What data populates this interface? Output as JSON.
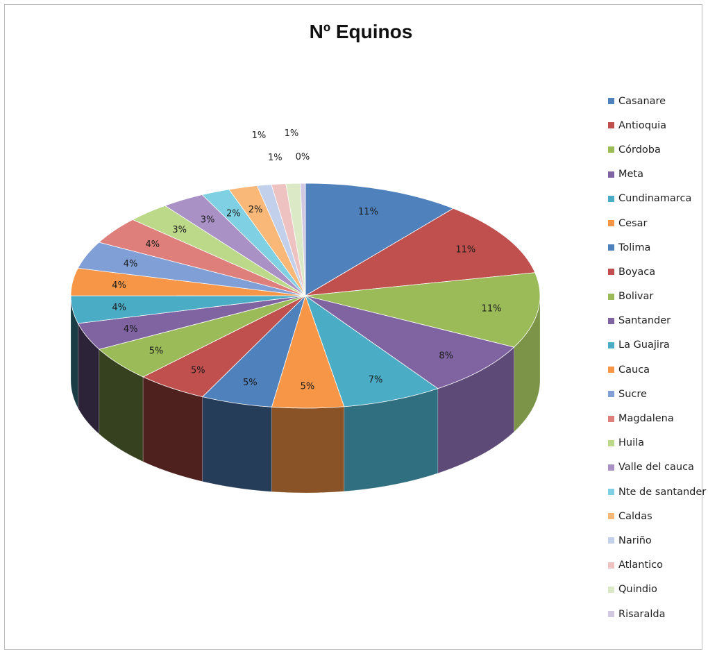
{
  "chart_data": {
    "type": "pie",
    "title": "Nº Equinos",
    "legend_position": "right",
    "categories": [
      "Casanare",
      "Antioquia",
      "Córdoba",
      "Meta",
      "Cundinamarca",
      "Cesar",
      "Tolima",
      "Boyaca",
      "Bolivar",
      "Santander",
      "La Guajira",
      "Cauca",
      "Sucre",
      "Magdalena",
      "Huila",
      "Valle del cauca",
      "Nte de santander",
      "Caldas",
      "Nariño",
      "Atlantico",
      "Quindio",
      "Risaralda"
    ],
    "values": [
      11,
      11,
      11,
      8,
      7,
      5,
      5,
      5,
      5,
      4,
      4,
      4,
      4,
      4,
      3,
      3,
      2,
      2,
      1,
      1,
      1,
      0
    ],
    "labels": [
      "11%",
      "11%",
      "11%",
      "8%",
      "7%",
      "5%",
      "5%",
      "5%",
      "5%",
      "4%",
      "4%",
      "4%",
      "4%",
      "4%",
      "3%",
      "3%",
      "2%",
      "2%",
      "1%",
      "1%",
      "1%",
      "0%"
    ],
    "colors": [
      "#4f81bd",
      "#c0504d",
      "#9bbb59",
      "#8064a2",
      "#4bacc6",
      "#f79646",
      "#4f81bd",
      "#c0504d",
      "#9bbb59",
      "#8064a2",
      "#4bacc6",
      "#f79646",
      "#7f9fd6",
      "#de7f7c",
      "#bcd98a",
      "#a991c6",
      "#7fd0e2",
      "#f9b878",
      "#c2d0eb",
      "#edc2c1",
      "#dce9c6",
      "#d2c8e2"
    ]
  }
}
